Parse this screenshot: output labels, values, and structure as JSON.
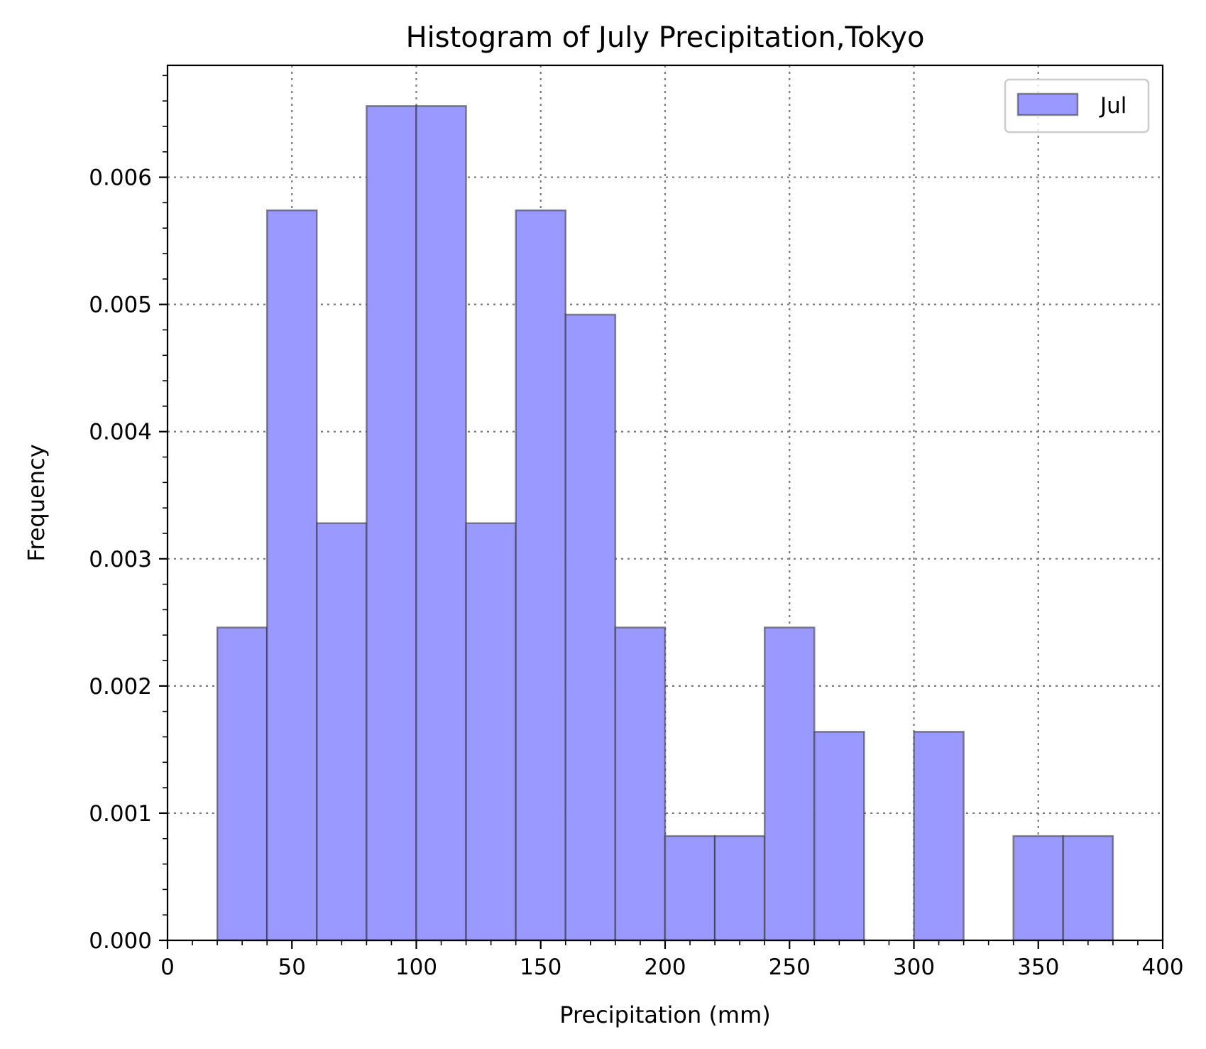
{
  "chart_data": {
    "type": "bar",
    "title": "Histogram of July Precipitation,Tokyo",
    "xlabel": "Precipitation (mm)",
    "ylabel": "Frequency",
    "xlim": [
      0,
      400
    ],
    "ylim": [
      0,
      0.00688
    ],
    "grid": true,
    "legend_placement": "upper-right",
    "x_ticks": [
      0,
      50,
      100,
      150,
      200,
      250,
      300,
      350,
      400
    ],
    "x_tick_labels": [
      "0",
      "50",
      "100",
      "150",
      "200",
      "250",
      "300",
      "350",
      "400"
    ],
    "y_ticks": [
      0,
      0.001,
      0.002,
      0.003,
      0.004,
      0.005,
      0.006
    ],
    "y_tick_labels": [
      "0.000",
      "0.001",
      "0.002",
      "0.003",
      "0.004",
      "0.005",
      "0.006"
    ],
    "bin_width": 20,
    "bin_starts": [
      20,
      40,
      60,
      80,
      100,
      120,
      140,
      160,
      180,
      200,
      220,
      240,
      260,
      280,
      300,
      320,
      340,
      360
    ],
    "series": [
      {
        "name": "Jul",
        "color": "#9999ff",
        "values": [
          0.00246,
          0.00574,
          0.00328,
          0.00656,
          0.00656,
          0.00328,
          0.00574,
          0.00492,
          0.00246,
          0.00082,
          0.00082,
          0.00246,
          0.00164,
          0.0,
          0.00164,
          0.0,
          0.00082,
          0.00082
        ]
      }
    ]
  }
}
